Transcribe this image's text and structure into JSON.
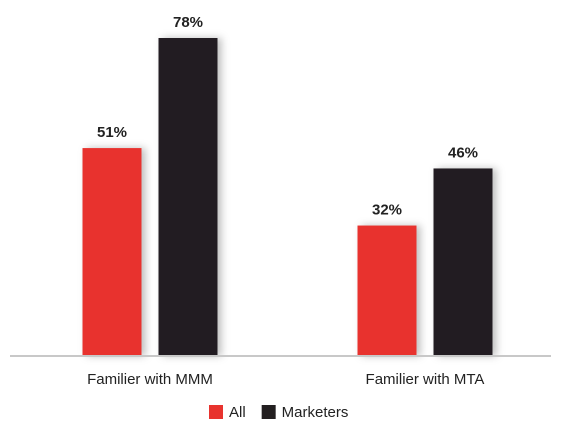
{
  "chart_data": {
    "type": "bar",
    "categories": [
      "Familier with MMM",
      "Familier with MTA"
    ],
    "series": [
      {
        "name": "All",
        "color": "#e8332e",
        "values": [
          51,
          32
        ],
        "value_labels": [
          "51%",
          "32%"
        ]
      },
      {
        "name": "Marketers",
        "color": "#231f20",
        "values": [
          78,
          46
        ],
        "value_labels": [
          "78%",
          "46%"
        ]
      }
    ],
    "legend": "bottom"
  }
}
